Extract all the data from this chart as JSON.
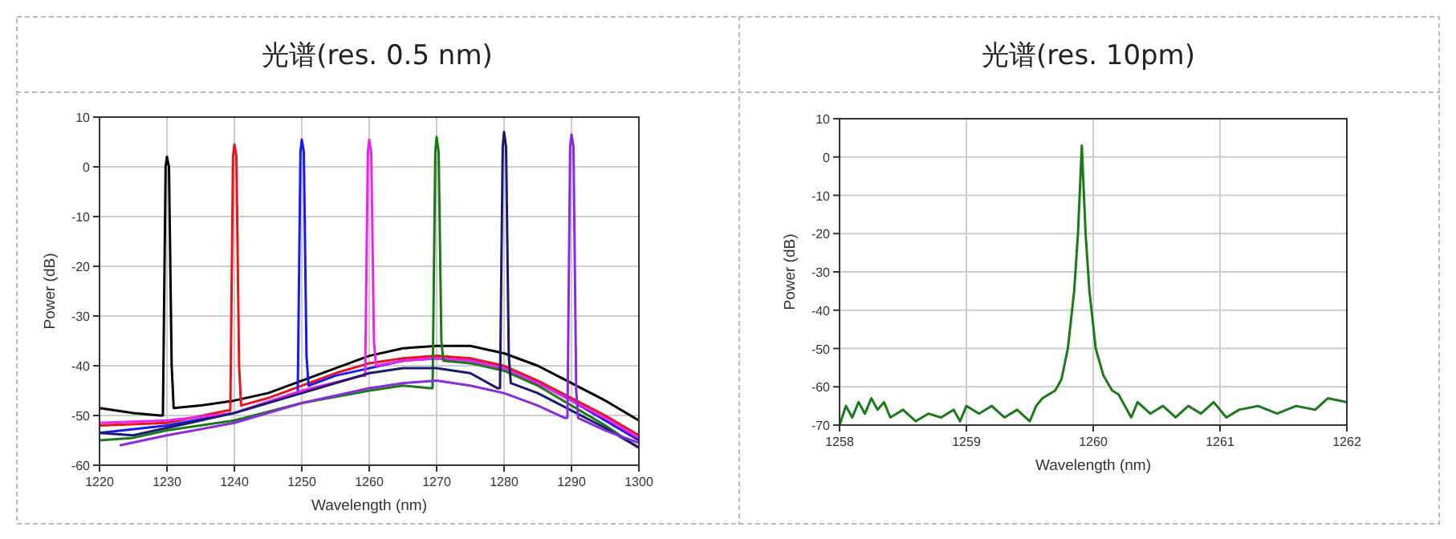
{
  "chart_data": [
    {
      "type": "line",
      "title": "光谱(res. 0.5 nm)",
      "xlabel": "Wavelength (nm)",
      "ylabel": "Power (dB)",
      "xlim": [
        1220,
        1300
      ],
      "ylim": [
        -60,
        10
      ],
      "xticks": [
        1220,
        1230,
        1240,
        1250,
        1260,
        1270,
        1280,
        1290,
        1300
      ],
      "yticks": [
        -60,
        -50,
        -40,
        -30,
        -20,
        -10,
        0,
        10
      ],
      "grid": true,
      "marker": "none",
      "line_style": "solid",
      "series": [
        {
          "color": "#000000",
          "x": [
            1220,
            1225,
            1229,
            1229.4,
            1229.8,
            1230,
            1230.3,
            1230.7,
            1231,
            1235,
            1240,
            1245,
            1250,
            1255,
            1260,
            1265,
            1270,
            1275,
            1280,
            1285,
            1290,
            1295,
            1300
          ],
          "values": [
            -48.5,
            -49.5,
            -50,
            -50,
            0,
            2,
            0,
            -40,
            -48.5,
            -48,
            -47,
            -45.5,
            -43,
            -40.5,
            -38,
            -36.5,
            -36,
            -36,
            -37.5,
            -40,
            -43.5,
            -47,
            -51
          ]
        },
        {
          "color": "#e8141c",
          "x": [
            1220,
            1230,
            1239,
            1239.4,
            1239.8,
            1240,
            1240.3,
            1240.7,
            1241,
            1245,
            1250,
            1255,
            1260,
            1265,
            1270,
            1275,
            1280,
            1285,
            1290,
            1295,
            1300
          ],
          "values": [
            -52,
            -51.5,
            -49,
            -49,
            2,
            4.5,
            2,
            -40,
            -48,
            -46.5,
            -44,
            -41.5,
            -39.5,
            -38.5,
            -38,
            -38.5,
            -40,
            -43,
            -46.5,
            -50,
            -54
          ]
        },
        {
          "color": "#1a1aef",
          "x": [
            1220,
            1230,
            1240,
            1249,
            1249.4,
            1249.8,
            1250,
            1250.3,
            1250.7,
            1251,
            1255,
            1260,
            1265,
            1270,
            1275,
            1280,
            1285,
            1290,
            1295,
            1300
          ],
          "values": [
            -53.5,
            -52,
            -49.5,
            -45.5,
            -45.5,
            3,
            5.5,
            3,
            -38,
            -44,
            -42,
            -40.5,
            -39,
            -38.5,
            -39,
            -40.5,
            -43.5,
            -47,
            -51,
            -55
          ]
        },
        {
          "color": "#ee22ee",
          "x": [
            1220,
            1230,
            1240,
            1250,
            1259,
            1259.4,
            1259.8,
            1260,
            1260.3,
            1260.7,
            1261,
            1265,
            1270,
            1275,
            1280,
            1285,
            1290,
            1295,
            1300
          ],
          "values": [
            -51.5,
            -51,
            -49.5,
            -45,
            -42,
            -42,
            3,
            5.5,
            3,
            -35,
            -40,
            -39,
            -38.5,
            -39,
            -40.5,
            -43.5,
            -47,
            -50.5,
            -54.5
          ]
        },
        {
          "color": "#1a7a1a",
          "x": [
            1220,
            1225,
            1230,
            1240,
            1250,
            1260,
            1265,
            1269,
            1269.4,
            1269.8,
            1270,
            1270.3,
            1270.7,
            1271,
            1275,
            1280,
            1285,
            1290,
            1295,
            1300
          ],
          "values": [
            -55,
            -54.5,
            -53,
            -51,
            -47.5,
            -45,
            -44,
            -44.5,
            -44.5,
            3,
            6,
            3,
            -35,
            -39,
            -39.5,
            -41,
            -44,
            -48,
            -52,
            -56.5
          ]
        },
        {
          "color": "#1a1a6e",
          "x": [
            1220,
            1225,
            1230,
            1240,
            1250,
            1260,
            1265,
            1270,
            1275,
            1279,
            1279.4,
            1279.8,
            1280,
            1280.3,
            1280.7,
            1281,
            1285,
            1290,
            1295,
            1300
          ],
          "values": [
            -53.5,
            -54,
            -52.5,
            -49.5,
            -45.5,
            -41.5,
            -40.5,
            -40.5,
            -41.5,
            -44.5,
            -44.5,
            4,
            7,
            4,
            -38,
            -43.5,
            -45.5,
            -49,
            -52.5,
            -56.5
          ]
        },
        {
          "color": "#8a2be2",
          "x": [
            1223,
            1230,
            1240,
            1250,
            1260,
            1265,
            1270,
            1275,
            1280,
            1285,
            1289,
            1289.4,
            1289.8,
            1290,
            1290.3,
            1290.7,
            1291,
            1295,
            1300
          ],
          "values": [
            -56,
            -54,
            -51.5,
            -47.5,
            -44.5,
            -43.5,
            -43,
            -44,
            -45.5,
            -48,
            -50.5,
            -50.5,
            4,
            6.5,
            4,
            -45,
            -50.5,
            -53,
            -55.5
          ]
        }
      ]
    },
    {
      "type": "line",
      "title": "光谱(res. 10pm)",
      "xlabel": "Wavelength (nm)",
      "ylabel": "Power (dB)",
      "xlim": [
        1258,
        1262
      ],
      "ylim": [
        -70,
        10
      ],
      "xticks": [
        1258,
        1259,
        1260,
        1261,
        1262
      ],
      "yticks": [
        -70,
        -60,
        -50,
        -40,
        -30,
        -20,
        -10,
        0,
        10
      ],
      "grid": true,
      "marker": "none",
      "line_style": "solid",
      "series": [
        {
          "color": "#1a7a1a",
          "x": [
            1258.0,
            1258.05,
            1258.1,
            1258.15,
            1258.2,
            1258.25,
            1258.3,
            1258.35,
            1258.4,
            1258.5,
            1258.6,
            1258.7,
            1258.8,
            1258.9,
            1258.95,
            1259.0,
            1259.1,
            1259.2,
            1259.3,
            1259.4,
            1259.5,
            1259.55,
            1259.6,
            1259.65,
            1259.7,
            1259.75,
            1259.8,
            1259.85,
            1259.88,
            1259.91,
            1259.94,
            1259.97,
            1260.02,
            1260.08,
            1260.15,
            1260.2,
            1260.25,
            1260.3,
            1260.35,
            1260.45,
            1260.55,
            1260.65,
            1260.75,
            1260.85,
            1260.95,
            1261.05,
            1261.15,
            1261.3,
            1261.45,
            1261.6,
            1261.75,
            1261.85,
            1262.0
          ],
          "values": [
            -70,
            -65,
            -68,
            -64,
            -67,
            -63,
            -66,
            -64,
            -68,
            -66,
            -69,
            -67,
            -68,
            -66,
            -69,
            -65,
            -67,
            -65,
            -68,
            -66,
            -69,
            -65,
            -63,
            -62,
            -61,
            -58,
            -50,
            -35,
            -20,
            3,
            -20,
            -35,
            -50,
            -57,
            -61,
            -62,
            -65,
            -68,
            -64,
            -67,
            -65,
            -68,
            -65,
            -67,
            -64,
            -68,
            -66,
            -65,
            -67,
            -65,
            -66,
            -63,
            -64
          ]
        }
      ]
    }
  ]
}
